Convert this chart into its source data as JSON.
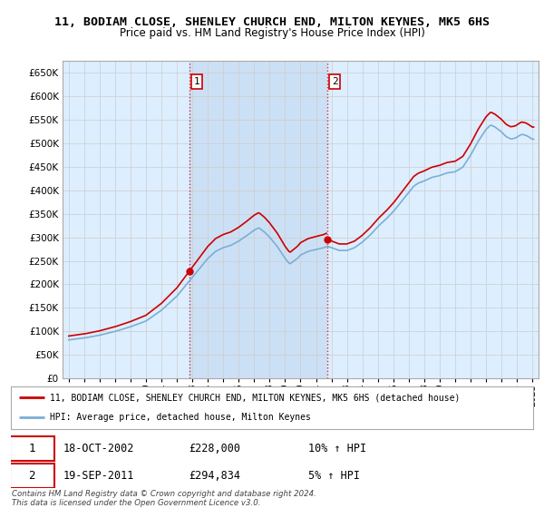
{
  "title": "11, BODIAM CLOSE, SHENLEY CHURCH END, MILTON KEYNES, MK5 6HS",
  "subtitle": "Price paid vs. HM Land Registry's House Price Index (HPI)",
  "legend_line1": "11, BODIAM CLOSE, SHENLEY CHURCH END, MILTON KEYNES, MK5 6HS (detached house)",
  "legend_line2": "HPI: Average price, detached house, Milton Keynes",
  "purchase1_date": "18-OCT-2002",
  "purchase1_price": "£228,000",
  "purchase1_hpi": "10% ↑ HPI",
  "purchase2_date": "19-SEP-2011",
  "purchase2_price": "£294,834",
  "purchase2_hpi": "5% ↑ HPI",
  "footer": "Contains HM Land Registry data © Crown copyright and database right 2024.\nThis data is licensed under the Open Government Licence v3.0.",
  "ylim": [
    0,
    675000
  ],
  "yticks": [
    0,
    50000,
    100000,
    150000,
    200000,
    250000,
    300000,
    350000,
    400000,
    450000,
    500000,
    550000,
    600000,
    650000
  ],
  "grid_color": "#cccccc",
  "bg_color": "#ddeeff",
  "bg_between_color": "#cce0f5",
  "plot_bg_color": "#ffffff",
  "hpi_line_color": "#7aafd4",
  "price_line_color": "#cc0000",
  "purchase1_x": 2002.8,
  "purchase1_y": 228000,
  "purchase2_x": 2011.72,
  "purchase2_y": 294834,
  "purchase1_vline_x": 2002.8,
  "purchase2_vline_x": 2011.72,
  "xmin": 1994.6,
  "xmax": 2025.4
}
